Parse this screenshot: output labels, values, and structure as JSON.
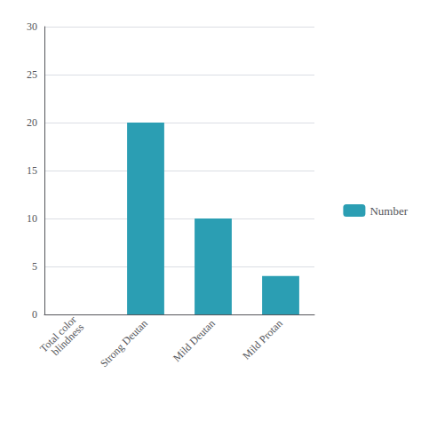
{
  "chart_data": {
    "type": "bar",
    "categories": [
      "Total color\nblindness",
      "Strong Deutan",
      "Mild Deutan",
      "Mild Protan"
    ],
    "series": [
      {
        "name": "Number",
        "color": "#2b9eb3",
        "values": [
          0,
          20,
          10,
          4
        ]
      }
    ],
    "ylim": [
      0,
      30
    ],
    "yticks": [
      0,
      5,
      10,
      15,
      20,
      25,
      30
    ],
    "grid": true,
    "legend": "right"
  }
}
